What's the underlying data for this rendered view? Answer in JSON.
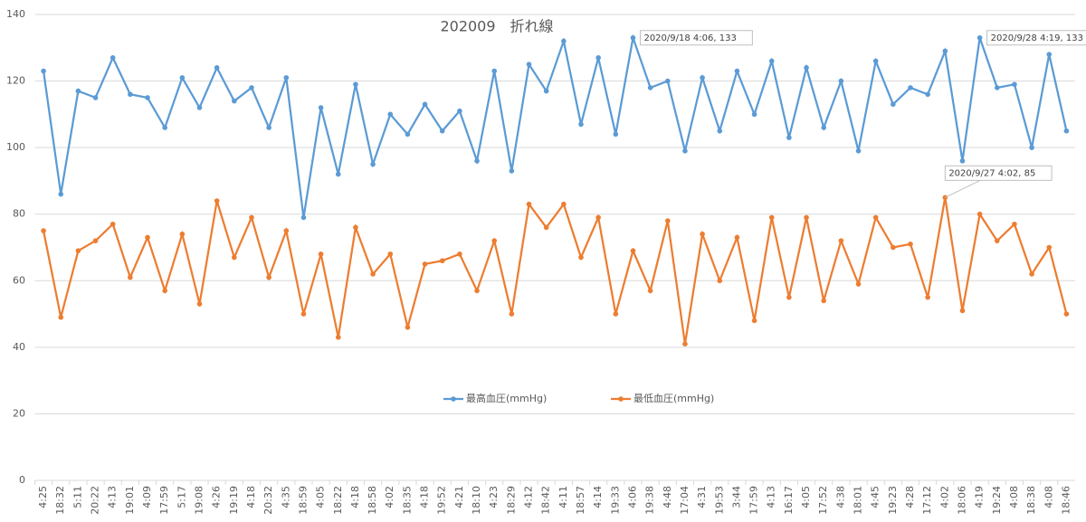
{
  "chart_data": {
    "type": "line",
    "title": "202009　折れ線",
    "categories": [
      "4:25",
      "18:32",
      "5:11",
      "20:22",
      "4:13",
      "19:01",
      "4:09",
      "17:59",
      "5:17",
      "19:08",
      "4:26",
      "19:19",
      "4:18",
      "20:32",
      "4:35",
      "18:59",
      "4:05",
      "18:22",
      "4:18",
      "18:58",
      "4:02",
      "18:35",
      "4:18",
      "19:52",
      "4:21",
      "18:10",
      "4:23",
      "18:29",
      "4:12",
      "18:42",
      "4:11",
      "18:57",
      "4:14",
      "19:33",
      "4:06",
      "19:38",
      "4:48",
      "17:04",
      "4:31",
      "19:53",
      "3:44",
      "17:59",
      "4:13",
      "16:17",
      "4:05",
      "17:52",
      "4:38",
      "18:01",
      "4:45",
      "19:23",
      "4:28",
      "17:12",
      "4:02",
      "18:06",
      "4:19",
      "19:24",
      "4:08",
      "18:38",
      "4:08",
      "18:46"
    ],
    "series": [
      {
        "name": "最高血圧(mmHg)",
        "color": "#5b9bd5",
        "values": [
          123,
          86,
          117,
          115,
          127,
          116,
          115,
          106,
          121,
          112,
          124,
          114,
          118,
          106,
          121,
          79,
          112,
          92,
          119,
          95,
          110,
          104,
          113,
          105,
          111,
          96,
          123,
          93,
          125,
          117,
          132,
          107,
          127,
          104,
          133,
          118,
          120,
          99,
          121,
          105,
          123,
          110,
          126,
          103,
          124,
          106,
          120,
          99,
          126,
          113,
          118,
          116,
          129,
          96,
          133,
          118,
          119,
          100,
          128,
          105
        ]
      },
      {
        "name": "最低血圧(mmHg)",
        "color": "#ed7d31",
        "values": [
          75,
          49,
          69,
          72,
          77,
          61,
          73,
          57,
          74,
          53,
          84,
          67,
          79,
          61,
          75,
          50,
          68,
          43,
          76,
          62,
          68,
          46,
          65,
          66,
          68,
          57,
          72,
          50,
          83,
          76,
          83,
          67,
          79,
          50,
          69,
          57,
          78,
          41,
          74,
          60,
          73,
          48,
          79,
          55,
          79,
          54,
          72,
          59,
          79,
          70,
          71,
          55,
          85,
          51,
          80,
          72,
          77,
          62,
          70,
          50
        ]
      }
    ],
    "annotations": [
      "2020/9/18 4:06, 133",
      "2020/9/28 4:19, 133",
      "2020/9/27 4:02, 85"
    ],
    "ylim": [
      0,
      140
    ],
    "yticks": [
      0,
      20,
      40,
      60,
      80,
      100,
      120,
      140
    ],
    "grid": true,
    "legend": "bottom"
  }
}
